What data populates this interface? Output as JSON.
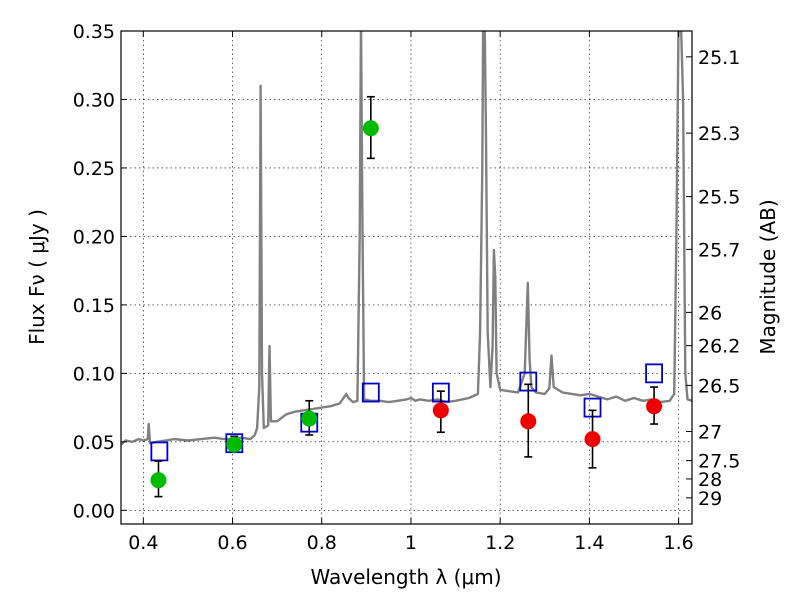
{
  "chart_data": {
    "type": "scatter",
    "x_axis": {
      "label": "Wavelength  λ (μm)",
      "lim": [
        0.35,
        1.63
      ],
      "ticks": [
        0.4,
        0.6,
        0.8,
        1.0,
        1.2,
        1.4,
        1.6
      ],
      "tick_labels": [
        "0.4",
        "0.6",
        "0.8",
        "1",
        "1.2",
        "1.4",
        "1.6"
      ]
    },
    "y_axis": {
      "label": "Flux  Fν  ( μJy )",
      "lim": [
        -0.01,
        0.35
      ],
      "ticks": [
        0.0,
        0.05,
        0.1,
        0.15,
        0.2,
        0.25,
        0.3,
        0.35
      ],
      "tick_labels": [
        "0.00",
        "0.05",
        "0.10",
        "0.15",
        "0.20",
        "0.25",
        "0.30",
        "0.35"
      ]
    },
    "y2_axis": {
      "label": "Magnitude (AB)",
      "ticks": [
        {
          "mag": 25.1,
          "label": "25.1"
        },
        {
          "mag": 25.3,
          "label": "25.3"
        },
        {
          "mag": 25.5,
          "label": "25.5"
        },
        {
          "mag": 25.7,
          "label": "25.7"
        },
        {
          "mag": 26.0,
          "label": "26"
        },
        {
          "mag": 26.2,
          "label": "26.2"
        },
        {
          "mag": 26.5,
          "label": "26.5"
        },
        {
          "mag": 27.0,
          "label": "27"
        },
        {
          "mag": 27.5,
          "label": "27.5"
        },
        {
          "mag": 28.0,
          "label": "28"
        },
        {
          "mag": 29.0,
          "label": "29"
        }
      ]
    },
    "grid": true,
    "series": [
      {
        "kind": "line",
        "color": "#808080",
        "points": [
          [
            0.35,
            0.048
          ],
          [
            0.36,
            0.051
          ],
          [
            0.375,
            0.05
          ],
          [
            0.39,
            0.052
          ],
          [
            0.4,
            0.051
          ],
          [
            0.41,
            0.052
          ],
          [
            0.412,
            0.063
          ],
          [
            0.415,
            0.049
          ],
          [
            0.43,
            0.05
          ],
          [
            0.45,
            0.051
          ],
          [
            0.47,
            0.052
          ],
          [
            0.5,
            0.051
          ],
          [
            0.53,
            0.052
          ],
          [
            0.56,
            0.053
          ],
          [
            0.58,
            0.052
          ],
          [
            0.6,
            0.052
          ],
          [
            0.62,
            0.053
          ],
          [
            0.64,
            0.052
          ],
          [
            0.65,
            0.055
          ],
          [
            0.655,
            0.06
          ],
          [
            0.66,
            0.09
          ],
          [
            0.663,
            0.31
          ],
          [
            0.666,
            0.1
          ],
          [
            0.67,
            0.06
          ],
          [
            0.68,
            0.062
          ],
          [
            0.683,
            0.12
          ],
          [
            0.686,
            0.065
          ],
          [
            0.7,
            0.065
          ],
          [
            0.72,
            0.07
          ],
          [
            0.74,
            0.072
          ],
          [
            0.76,
            0.073
          ],
          [
            0.78,
            0.074
          ],
          [
            0.8,
            0.075
          ],
          [
            0.82,
            0.076
          ],
          [
            0.84,
            0.078
          ],
          [
            0.855,
            0.085
          ],
          [
            0.86,
            0.082
          ],
          [
            0.87,
            0.079
          ],
          [
            0.88,
            0.08
          ],
          [
            0.885,
            0.2
          ],
          [
            0.888,
            0.36
          ],
          [
            0.891,
            0.22
          ],
          [
            0.895,
            0.081
          ],
          [
            0.91,
            0.08
          ],
          [
            0.93,
            0.08
          ],
          [
            0.95,
            0.079
          ],
          [
            0.97,
            0.08
          ],
          [
            0.99,
            0.081
          ],
          [
            1.0,
            0.082
          ],
          [
            1.01,
            0.08
          ],
          [
            1.02,
            0.081
          ],
          [
            1.04,
            0.08
          ],
          [
            1.06,
            0.081
          ],
          [
            1.08,
            0.079
          ],
          [
            1.1,
            0.08
          ],
          [
            1.13,
            0.082
          ],
          [
            1.15,
            0.085
          ],
          [
            1.155,
            0.13
          ],
          [
            1.16,
            0.25
          ],
          [
            1.162,
            0.36
          ],
          [
            1.165,
            0.36
          ],
          [
            1.168,
            0.28
          ],
          [
            1.172,
            0.13
          ],
          [
            1.178,
            0.09
          ],
          [
            1.183,
            0.12
          ],
          [
            1.186,
            0.19
          ],
          [
            1.189,
            0.17
          ],
          [
            1.192,
            0.1
          ],
          [
            1.2,
            0.088
          ],
          [
            1.22,
            0.087
          ],
          [
            1.24,
            0.086
          ],
          [
            1.255,
            0.1
          ],
          [
            1.262,
            0.166
          ],
          [
            1.266,
            0.11
          ],
          [
            1.27,
            0.09
          ],
          [
            1.28,
            0.086
          ],
          [
            1.3,
            0.085
          ],
          [
            1.31,
            0.089
          ],
          [
            1.315,
            0.113
          ],
          [
            1.32,
            0.09
          ],
          [
            1.34,
            0.086
          ],
          [
            1.36,
            0.085
          ],
          [
            1.38,
            0.084
          ],
          [
            1.4,
            0.085
          ],
          [
            1.42,
            0.083
          ],
          [
            1.44,
            0.081
          ],
          [
            1.46,
            0.083
          ],
          [
            1.48,
            0.08
          ],
          [
            1.5,
            0.082
          ],
          [
            1.52,
            0.08
          ],
          [
            1.54,
            0.081
          ],
          [
            1.56,
            0.079
          ],
          [
            1.58,
            0.08
          ],
          [
            1.59,
            0.085
          ],
          [
            1.595,
            0.2
          ],
          [
            1.6,
            0.36
          ],
          [
            1.605,
            0.36
          ],
          [
            1.61,
            0.3
          ],
          [
            1.615,
            0.1
          ],
          [
            1.62,
            0.081
          ],
          [
            1.63,
            0.08
          ]
        ]
      },
      {
        "kind": "box",
        "color": "#0000cc",
        "points": [
          [
            0.436,
            0.043
          ],
          [
            0.604,
            0.049
          ],
          [
            0.772,
            0.064
          ],
          [
            0.91,
            0.086
          ],
          [
            1.067,
            0.086
          ],
          [
            1.263,
            0.094
          ],
          [
            1.407,
            0.075
          ],
          [
            1.545,
            0.1
          ]
        ]
      },
      {
        "kind": "point",
        "color": "#00bb00",
        "points": [
          {
            "x": 0.434,
            "y": 0.022,
            "err": [
              0.01,
              0.036
            ]
          },
          {
            "x": 0.604,
            "y": 0.048,
            "err": [
              0.043,
              0.054
            ]
          },
          {
            "x": 0.772,
            "y": 0.067,
            "err": [
              0.055,
              0.08
            ]
          },
          {
            "x": 0.91,
            "y": 0.279,
            "err": [
              0.257,
              0.302
            ]
          }
        ]
      },
      {
        "kind": "point",
        "color": "#ee0000",
        "points": [
          {
            "x": 1.067,
            "y": 0.073,
            "err": [
              0.057,
              0.087
            ]
          },
          {
            "x": 1.263,
            "y": 0.065,
            "err": [
              0.039,
              0.092
            ]
          },
          {
            "x": 1.407,
            "y": 0.052,
            "err": [
              0.031,
              0.073
            ]
          },
          {
            "x": 1.545,
            "y": 0.076,
            "err": [
              0.063,
              0.09
            ]
          }
        ]
      }
    ]
  }
}
